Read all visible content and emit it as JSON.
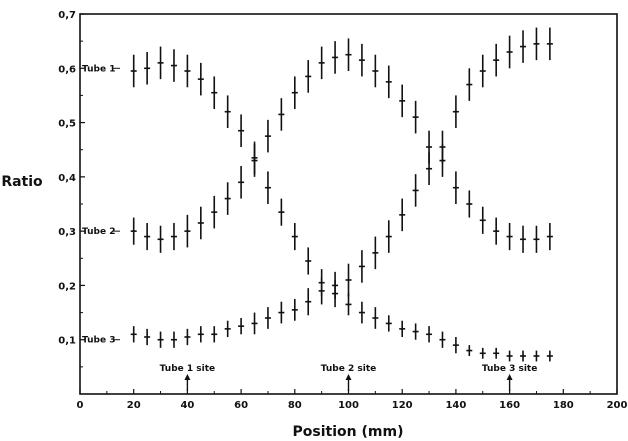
{
  "chart_data": {
    "type": "scatter",
    "title": "",
    "xlabel": "Position (mm)",
    "ylabel": "Ratio",
    "xlim": [
      0,
      200
    ],
    "ylim": [
      0,
      0.7
    ],
    "xticks": [
      0,
      20,
      40,
      60,
      80,
      100,
      120,
      140,
      160,
      180,
      200
    ],
    "xtick_labels": [
      "0",
      "20",
      "40",
      "60",
      "80",
      "100",
      "120",
      "140",
      "160",
      "180",
      "200"
    ],
    "yticks": [
      0.1,
      0.2,
      0.3,
      0.4,
      0.5,
      0.6,
      0.7
    ],
    "ytick_labels": [
      "0,1",
      "0,2",
      "0,3",
      "0,4",
      "0,5",
      "0,6",
      "0,7"
    ],
    "grid": false,
    "legend": "none",
    "x": [
      20,
      25,
      30,
      35,
      40,
      45,
      50,
      55,
      60,
      65,
      70,
      75,
      80,
      85,
      90,
      95,
      100,
      105,
      110,
      115,
      120,
      125,
      130,
      135,
      140,
      145,
      150,
      155,
      160,
      165,
      170,
      175
    ],
    "series": [
      {
        "name": "Tube 1",
        "values": [
          0.595,
          0.6,
          0.61,
          0.605,
          0.595,
          0.58,
          0.555,
          0.52,
          0.485,
          0.435,
          0.38,
          0.335,
          0.29,
          0.245,
          0.205,
          0.185,
          0.165,
          0.15,
          0.14,
          0.13,
          0.12,
          0.115,
          0.11,
          0.1,
          0.09,
          0.08,
          0.075,
          0.075,
          0.07,
          0.07,
          0.07,
          0.07
        ],
        "errors": [
          0.03,
          0.03,
          0.03,
          0.03,
          0.03,
          0.03,
          0.03,
          0.03,
          0.03,
          0.03,
          0.03,
          0.025,
          0.025,
          0.025,
          0.025,
          0.025,
          0.02,
          0.02,
          0.02,
          0.015,
          0.015,
          0.015,
          0.015,
          0.015,
          0.015,
          0.01,
          0.01,
          0.01,
          0.01,
          0.01,
          0.01,
          0.01
        ]
      },
      {
        "name": "Tube 2",
        "values": [
          0.3,
          0.29,
          0.285,
          0.29,
          0.3,
          0.315,
          0.335,
          0.36,
          0.39,
          0.43,
          0.475,
          0.515,
          0.555,
          0.585,
          0.61,
          0.62,
          0.625,
          0.615,
          0.595,
          0.575,
          0.54,
          0.51,
          0.455,
          0.43,
          0.38,
          0.35,
          0.32,
          0.3,
          0.29,
          0.285,
          0.285,
          0.29
        ],
        "errors": [
          0.025,
          0.025,
          0.025,
          0.025,
          0.03,
          0.03,
          0.03,
          0.03,
          0.03,
          0.03,
          0.03,
          0.03,
          0.03,
          0.03,
          0.03,
          0.03,
          0.03,
          0.03,
          0.03,
          0.03,
          0.03,
          0.03,
          0.03,
          0.03,
          0.03,
          0.025,
          0.025,
          0.025,
          0.025,
          0.025,
          0.025,
          0.025
        ]
      },
      {
        "name": "Tube 3",
        "values": [
          0.11,
          0.105,
          0.1,
          0.1,
          0.105,
          0.11,
          0.11,
          0.12,
          0.125,
          0.13,
          0.14,
          0.15,
          0.155,
          0.17,
          0.19,
          0.2,
          0.21,
          0.235,
          0.26,
          0.29,
          0.33,
          0.375,
          0.415,
          0.455,
          0.52,
          0.57,
          0.595,
          0.615,
          0.63,
          0.64,
          0.645,
          0.645
        ],
        "errors": [
          0.015,
          0.015,
          0.015,
          0.015,
          0.015,
          0.015,
          0.015,
          0.015,
          0.015,
          0.02,
          0.02,
          0.02,
          0.02,
          0.025,
          0.025,
          0.025,
          0.03,
          0.03,
          0.03,
          0.03,
          0.03,
          0.03,
          0.03,
          0.03,
          0.03,
          0.03,
          0.03,
          0.03,
          0.03,
          0.03,
          0.03,
          0.03
        ]
      }
    ],
    "series_labels": [
      {
        "text": "Tube 1",
        "y": 0.6
      },
      {
        "text": "Tube 2",
        "y": 0.3
      },
      {
        "text": "Tube 3",
        "y": 0.1
      }
    ],
    "annotations": [
      {
        "text": "Tube 1 site",
        "x": 40
      },
      {
        "text": "Tube 2 site",
        "x": 100
      },
      {
        "text": "Tube 3 site",
        "x": 160
      }
    ],
    "colors": {
      "ink": "#111111",
      "background": "#ffffff"
    }
  }
}
